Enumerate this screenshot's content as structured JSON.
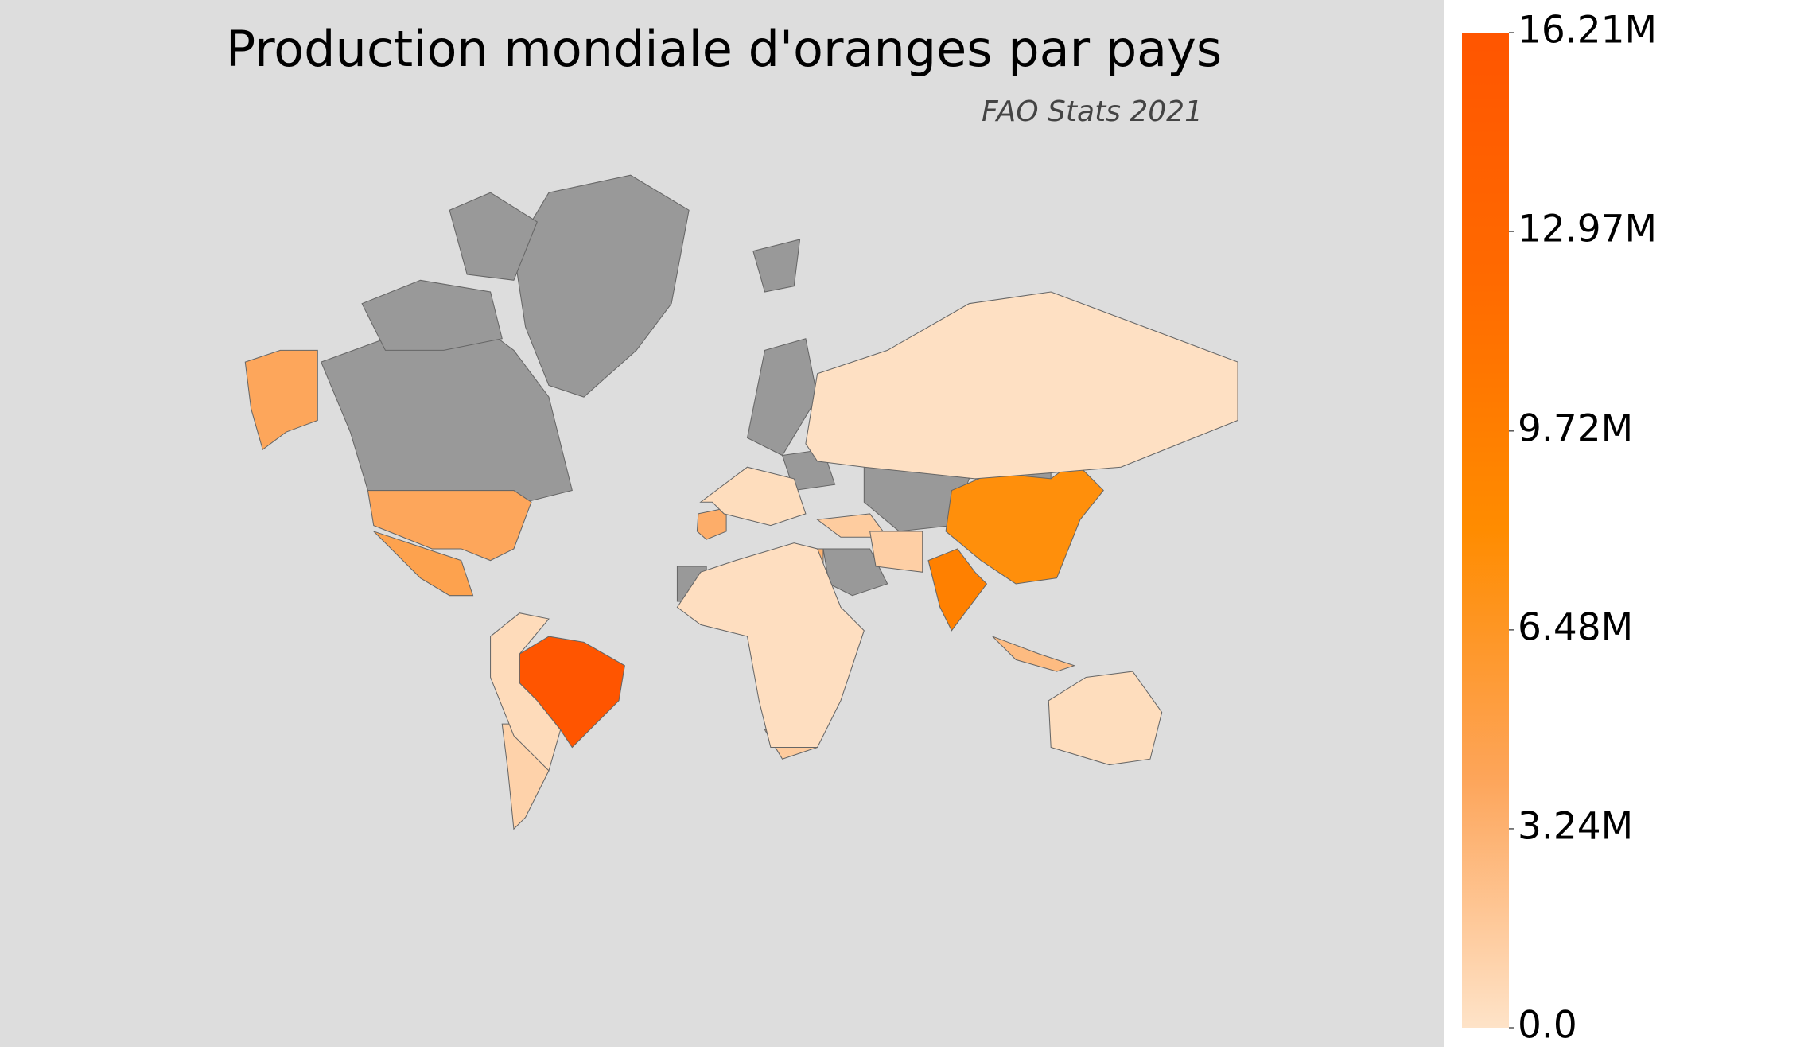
{
  "chart_data": {
    "type": "choropleth",
    "title": "Production mondiale d'oranges par pays",
    "subtitle": "FAO Stats 2021",
    "values": [
      16200000,
      9500000,
      7600000,
      4000000,
      4000000,
      4600000,
      3500000,
      3200000,
      1600000,
      2600000,
      1500000,
      1300000,
      1100000,
      200000,
      400000,
      300000,
      500000,
      400000
    ],
    "clim": [
      0,
      16210000
    ],
    "cticks": [
      {
        "value": 0,
        "label": "0.0"
      },
      {
        "value": 3240000,
        "label": "3.24M"
      },
      {
        "value": 6480000,
        "label": "6.48M"
      },
      {
        "value": 9720000,
        "label": "9.72M"
      },
      {
        "value": 12970000,
        "label": "12.97M"
      },
      {
        "value": 16210000,
        "label": "16.21M"
      }
    ],
    "colormap": [
      "#fee3c8",
      "#fda55a",
      "#ff8c00",
      "#ff6a00",
      "#ff5500"
    ],
    "missing_color": "#999999"
  }
}
